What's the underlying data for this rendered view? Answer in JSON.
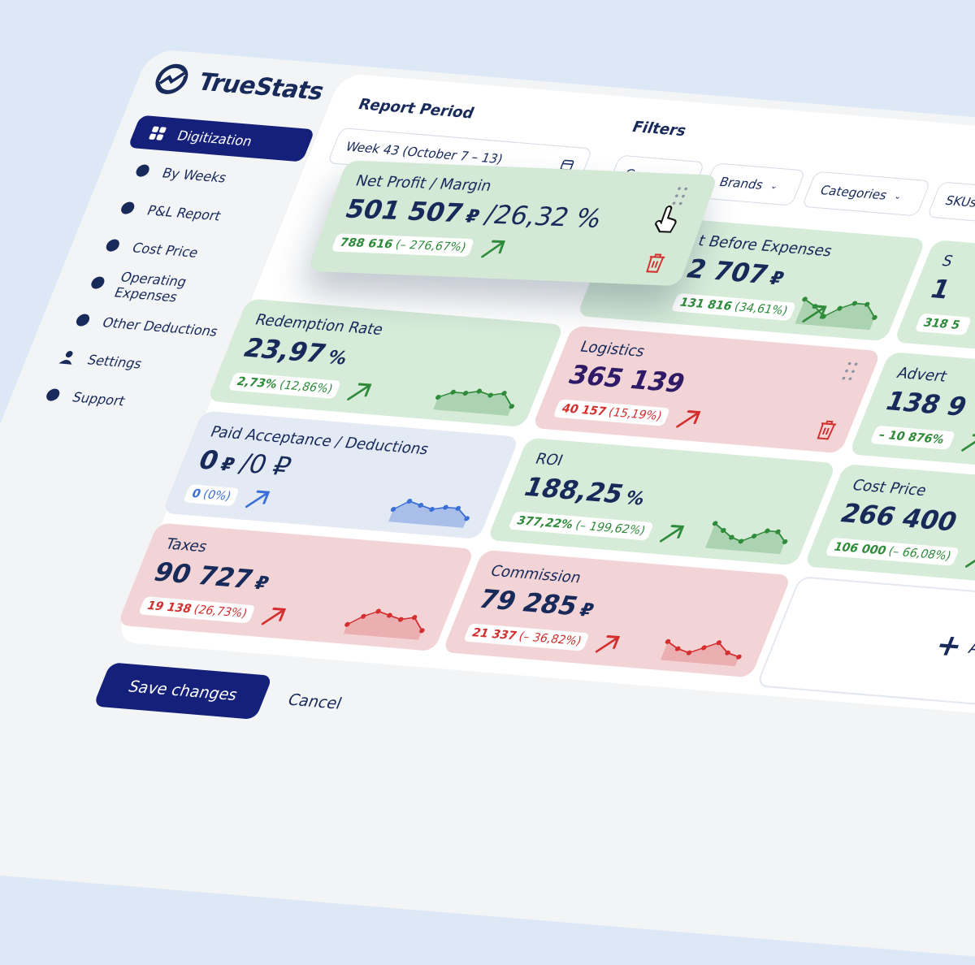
{
  "brand": "TrueStats",
  "nav": {
    "items": [
      "Digitization",
      "By Weeks",
      "P&L Report",
      "Cost Price",
      "Operating Expenses",
      "Other Deductions",
      "Settings",
      "Support"
    ],
    "active": 0
  },
  "report_period": {
    "label": "Report Period",
    "value": "Week 43  (October 7 – 13)"
  },
  "filters": {
    "label": "Filters",
    "items": [
      "Groups",
      "Brands",
      "Categories",
      "SKUs"
    ]
  },
  "dragged_card": {
    "title": "Net Profit / Margin",
    "main": "501 507",
    "unit": "₽",
    "suffix": "/26,32 %",
    "delta": "788 616",
    "pct": "(– 276,67%)",
    "tone": "green"
  },
  "cards": [
    {
      "title": "t Before Expenses",
      "main": "2 707",
      "unit": "₽",
      "delta": "131 816",
      "pct": "(34,61%)",
      "tone": "green",
      "spark": [
        7,
        5,
        2,
        5,
        7,
        7,
        3
      ]
    },
    {
      "title": "S",
      "main": "1",
      "delta": "318 5",
      "tone": "green"
    },
    {
      "title": "Redemption Rate",
      "main": "23,97",
      "unit": "%",
      "delta": "2,73%",
      "pct": "(12,86%)",
      "tone": "green",
      "spark": [
        3,
        5,
        5,
        6,
        5,
        6,
        2
      ]
    },
    {
      "title": "Logistics",
      "main": "365 139",
      "delta": "40 157",
      "pct": "(15,19%)",
      "tone": "red"
    },
    {
      "title": "Advert",
      "main": "138 9",
      "delta": "– 10 876%",
      "tone": "green"
    },
    {
      "title": "Paid Acceptance / Deductions",
      "main": "0",
      "unit": "₽",
      "suffix": "/0 ₽",
      "delta": "0",
      "pct": "(0%)",
      "tone": "blue",
      "spark": [
        3,
        6,
        5,
        4,
        5,
        5,
        2
      ]
    },
    {
      "title": "ROI",
      "main": "188,25",
      "unit": "%",
      "delta": "377,22%",
      "pct": "(– 199,62%)",
      "tone": "green",
      "spark": [
        7,
        5,
        3,
        2,
        4,
        6,
        6,
        3
      ]
    },
    {
      "title": "Cost Price",
      "main": "266 400",
      "delta": "106 000",
      "pct": "(– 66,08%)",
      "tone": "green"
    },
    {
      "title": "Taxes",
      "main": "90 727",
      "unit": "₽",
      "delta": "19 138",
      "pct": "(26,73%)",
      "tone": "red",
      "spark": [
        2,
        5,
        7,
        6,
        5,
        6,
        2
      ]
    },
    {
      "title": "Commission",
      "main": "79 285",
      "unit": "₽",
      "delta": "21 337",
      "pct": "(– 36,82%)",
      "tone": "red",
      "spark": [
        5,
        3,
        2,
        4,
        6,
        3,
        2
      ]
    }
  ],
  "add_label": "Add d",
  "actions": {
    "save": "Save changes",
    "cancel": "Cancel"
  }
}
